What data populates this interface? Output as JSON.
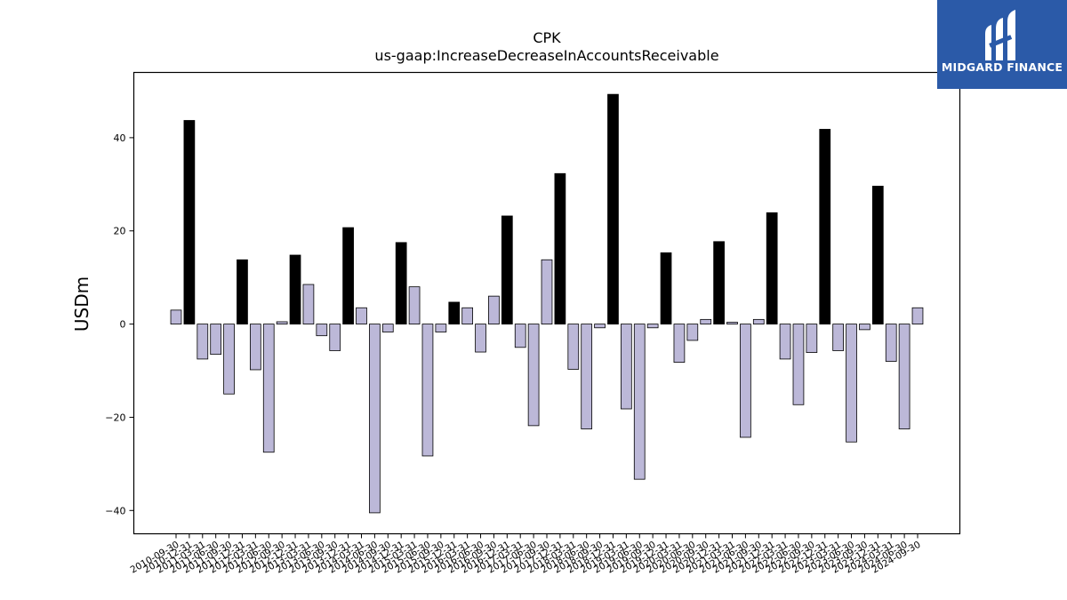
{
  "chart_data": {
    "type": "bar",
    "title": "CPK",
    "subtitle": "us-gaap:IncreaseDecreaseInAccountsReceivable",
    "xlabel": "",
    "ylabel": "USDm",
    "ylim": [
      -45,
      54
    ],
    "yticks": [
      -40,
      -20,
      0,
      20,
      40
    ],
    "grid": false,
    "colors": {
      "annual": "#000000",
      "quarter": "#bcb8d8",
      "edge": "#000000"
    },
    "categories": [
      "2010-09-30",
      "2010-12-31",
      "2011-03-31",
      "2011-06-30",
      "2011-09-30",
      "2011-12-31",
      "2012-03-31",
      "2012-06-30",
      "2012-09-30",
      "2012-12-31",
      "2013-03-31",
      "2013-06-30",
      "2013-09-30",
      "2013-12-31",
      "2014-03-31",
      "2014-06-30",
      "2014-09-30",
      "2014-12-31",
      "2015-03-31",
      "2015-06-30",
      "2015-09-30",
      "2015-12-31",
      "2016-03-31",
      "2016-06-30",
      "2016-09-30",
      "2016-12-31",
      "2017-03-31",
      "2017-06-30",
      "2017-09-30",
      "2017-12-31",
      "2018-03-31",
      "2018-06-30",
      "2018-09-30",
      "2018-12-31",
      "2019-03-31",
      "2019-06-30",
      "2019-09-30",
      "2019-12-31",
      "2020-03-31",
      "2020-06-30",
      "2020-09-30",
      "2020-12-31",
      "2021-03-31",
      "2021-06-30",
      "2021-09-30",
      "2021-12-31",
      "2022-03-31",
      "2022-06-30",
      "2022-09-30",
      "2022-12-31",
      "2023-03-31",
      "2023-06-30",
      "2023-09-30",
      "2023-12-31",
      "2024-03-31",
      "2024-06-30",
      "2024-09-30"
    ],
    "values": [
      3.0,
      43.7,
      -7.5,
      -6.5,
      -15.0,
      13.8,
      -9.8,
      -27.5,
      0.5,
      14.8,
      8.5,
      -2.5,
      -5.7,
      20.7,
      3.5,
      -40.5,
      -1.7,
      17.5,
      8.0,
      -28.3,
      -1.7,
      4.7,
      3.5,
      -6.0,
      6.0,
      23.2,
      -5.0,
      -21.8,
      13.8,
      32.3,
      -9.7,
      -22.5,
      -0.8,
      49.3,
      -18.2,
      -33.3,
      -0.8,
      15.3,
      -8.2,
      -3.5,
      1.0,
      17.7,
      0.4,
      -24.3,
      1.0,
      23.9,
      -7.5,
      -17.3,
      -6.1,
      41.8,
      -5.7,
      -25.3,
      -1.2,
      29.6,
      -8.0,
      -22.5,
      3.5
    ],
    "annual_flags": [
      false,
      true,
      false,
      false,
      false,
      true,
      false,
      false,
      false,
      true,
      false,
      false,
      false,
      true,
      false,
      false,
      false,
      true,
      false,
      false,
      false,
      true,
      false,
      false,
      false,
      true,
      false,
      false,
      false,
      true,
      false,
      false,
      false,
      true,
      false,
      false,
      false,
      true,
      false,
      false,
      false,
      true,
      false,
      false,
      false,
      true,
      false,
      false,
      false,
      true,
      false,
      false,
      false,
      true,
      false,
      false,
      false
    ]
  },
  "logo": {
    "name": "MIDGARD FINANCE"
  }
}
